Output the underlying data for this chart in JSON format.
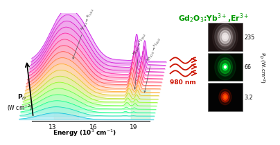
{
  "title": "Gd$_2$O$_3$:Yb$^{3+}$,Er$^{3+}$",
  "title_color": "#00bb00",
  "xlabel": "Energy (10$^3$ cm$^{-1}$)",
  "ylabel_line1": "P$_D$",
  "ylabel_line2": "(W cm$^{-2}$)",
  "x_ticks": [
    "13",
    "16",
    "19"
  ],
  "n_spectra": 18,
  "annotation_IR": "$^4$F$_{9/2}$$\\rightarrow$$^4$I$_{15/2}$",
  "annotation_green1": "$^4$S$_{3/2}$$\\rightarrow$$^4$I$_{15/2}$",
  "annotation_green2": "$^2$H$_{11/2}$$\\rightarrow$$^4$I$_{15/2}$",
  "label_980nm": "980 nm",
  "pd_values": [
    "235",
    "66",
    "3.2"
  ],
  "pd_label": "P$_D$ (W.cm$^{-2}$)"
}
